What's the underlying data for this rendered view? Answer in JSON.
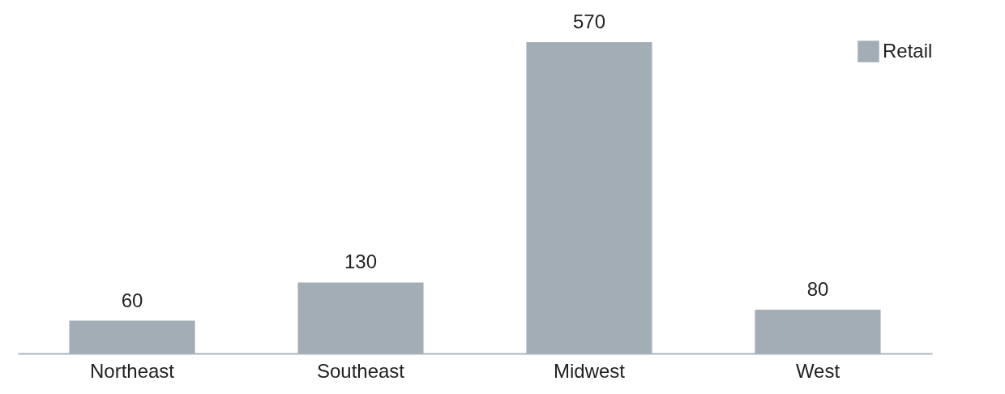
{
  "chart_data": {
    "type": "bar",
    "categories": [
      "Northeast",
      "Southeast",
      "Midwest",
      "West"
    ],
    "series": [
      {
        "name": "Retail",
        "color": "#a2adb5",
        "values": [
          60,
          130,
          570,
          80
        ]
      }
    ],
    "data_labels": true,
    "legend": "top right",
    "grid": false
  }
}
